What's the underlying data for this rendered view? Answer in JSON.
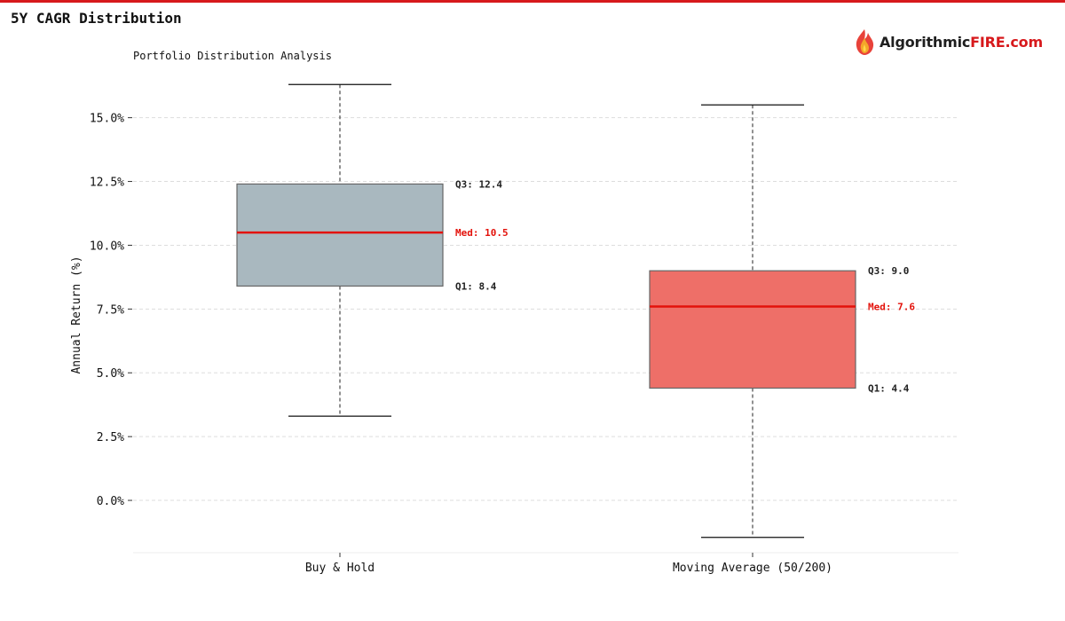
{
  "page": {
    "title": "5Y CAGR Distribution",
    "accent_color": "#d7191c"
  },
  "brand": {
    "name_prefix": "Algorithmic",
    "name_suffix": "FIRE.com",
    "icon": "flame-icon"
  },
  "chart_data": {
    "type": "box",
    "subtitle": "Portfolio Distribution Analysis",
    "ylabel": "Annual Return (%)",
    "ylim": [
      -2.05,
      16.9
    ],
    "yticks": [
      0.0,
      2.5,
      5.0,
      7.5,
      10.0,
      12.5,
      15.0
    ],
    "ytick_labels": [
      "0.0%",
      "2.5%",
      "5.0%",
      "7.5%",
      "10.0%",
      "12.5%",
      "15.0%"
    ],
    "grid": true,
    "categories": [
      "Buy & Hold",
      "Moving Average (50/200)"
    ],
    "boxes": [
      {
        "category": "Buy & Hold",
        "min": 3.3,
        "q1": 8.4,
        "median": 10.5,
        "q3": 12.4,
        "max": 16.3,
        "fill": "#a9b8bf",
        "label_q3": "Q3: 12.4",
        "label_median": "Med: 10.5",
        "label_q1": "Q1: 8.4"
      },
      {
        "category": "Moving Average (50/200)",
        "min": -1.45,
        "q1": 4.4,
        "median": 7.6,
        "q3": 9.0,
        "max": 15.5,
        "fill": "#ee6f68",
        "label_q3": "Q3: 9.0",
        "label_median": "Med: 7.6",
        "label_q1": "Q1: 4.4"
      }
    ],
    "colors": {
      "median": "#e3120b",
      "grid": "#dddddd",
      "axis": "#333333",
      "box_edge": "#666666",
      "label": "#222222"
    }
  }
}
